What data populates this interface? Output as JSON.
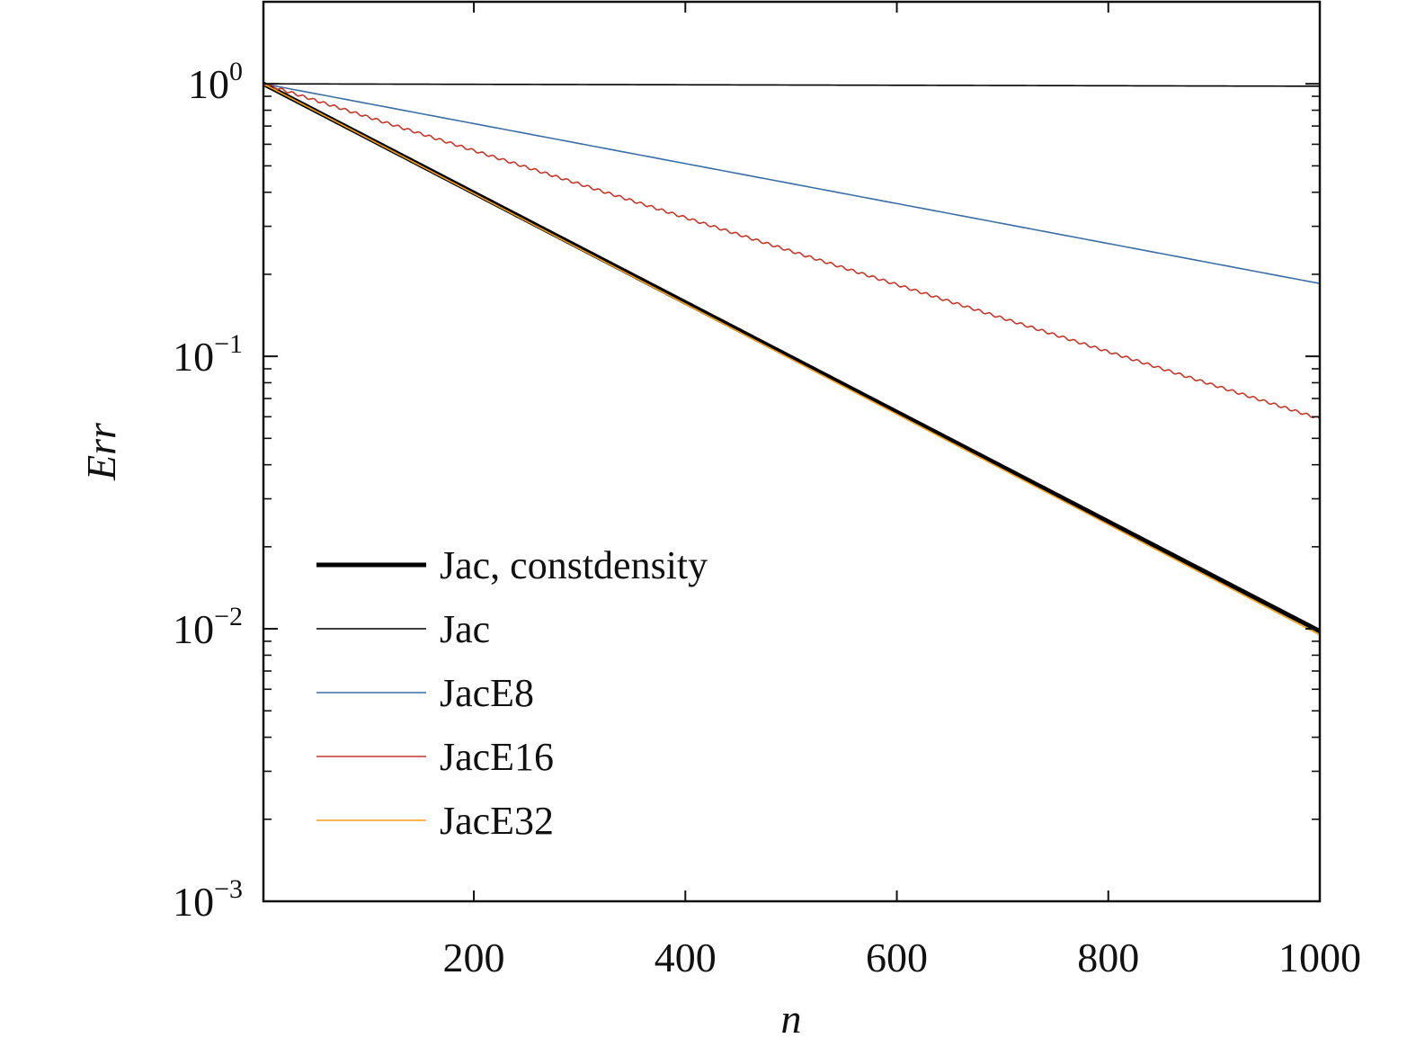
{
  "chart_data": {
    "type": "line",
    "xlabel": "n",
    "ylabel": "Err",
    "xscale": "linear",
    "yscale": "log",
    "xlim": [
      1,
      1000
    ],
    "ylim": [
      0.001,
      2
    ],
    "xticks": [
      200,
      400,
      600,
      800,
      1000
    ],
    "xtick_labels": [
      "200",
      "400",
      "600",
      "800",
      "1000"
    ],
    "yticks": [
      0.001,
      0.01,
      0.1,
      1
    ],
    "ytick_labels": [
      {
        "base": "10",
        "exp": "−3"
      },
      {
        "base": "10",
        "exp": "−2"
      },
      {
        "base": "10",
        "exp": "−1"
      },
      {
        "base": "10",
        "exp": "0"
      }
    ],
    "grid": false,
    "legend_position": "bottom-left",
    "series": [
      {
        "name": "Jac, constdensity",
        "color": "#000000",
        "width": "thick",
        "x": [
          1,
          1000
        ],
        "y": [
          1.0,
          0.0098
        ]
      },
      {
        "name": "Jac",
        "color": "#000000",
        "width": "thin",
        "x": [
          1,
          1000
        ],
        "y": [
          1.0,
          0.98
        ]
      },
      {
        "name": "JacE8",
        "color": "#3b6ea5",
        "width": "thin",
        "x": [
          1,
          1000
        ],
        "y": [
          1.0,
          0.185
        ]
      },
      {
        "name": "JacE16",
        "color": "#c0392b",
        "width": "thin",
        "stepped": true,
        "x": [
          1,
          1000
        ],
        "y": [
          1.0,
          0.059
        ]
      },
      {
        "name": "JacE32",
        "color": "#f0a020",
        "width": "thin",
        "x": [
          1,
          1000
        ],
        "y": [
          1.0,
          0.0095
        ]
      }
    ]
  }
}
